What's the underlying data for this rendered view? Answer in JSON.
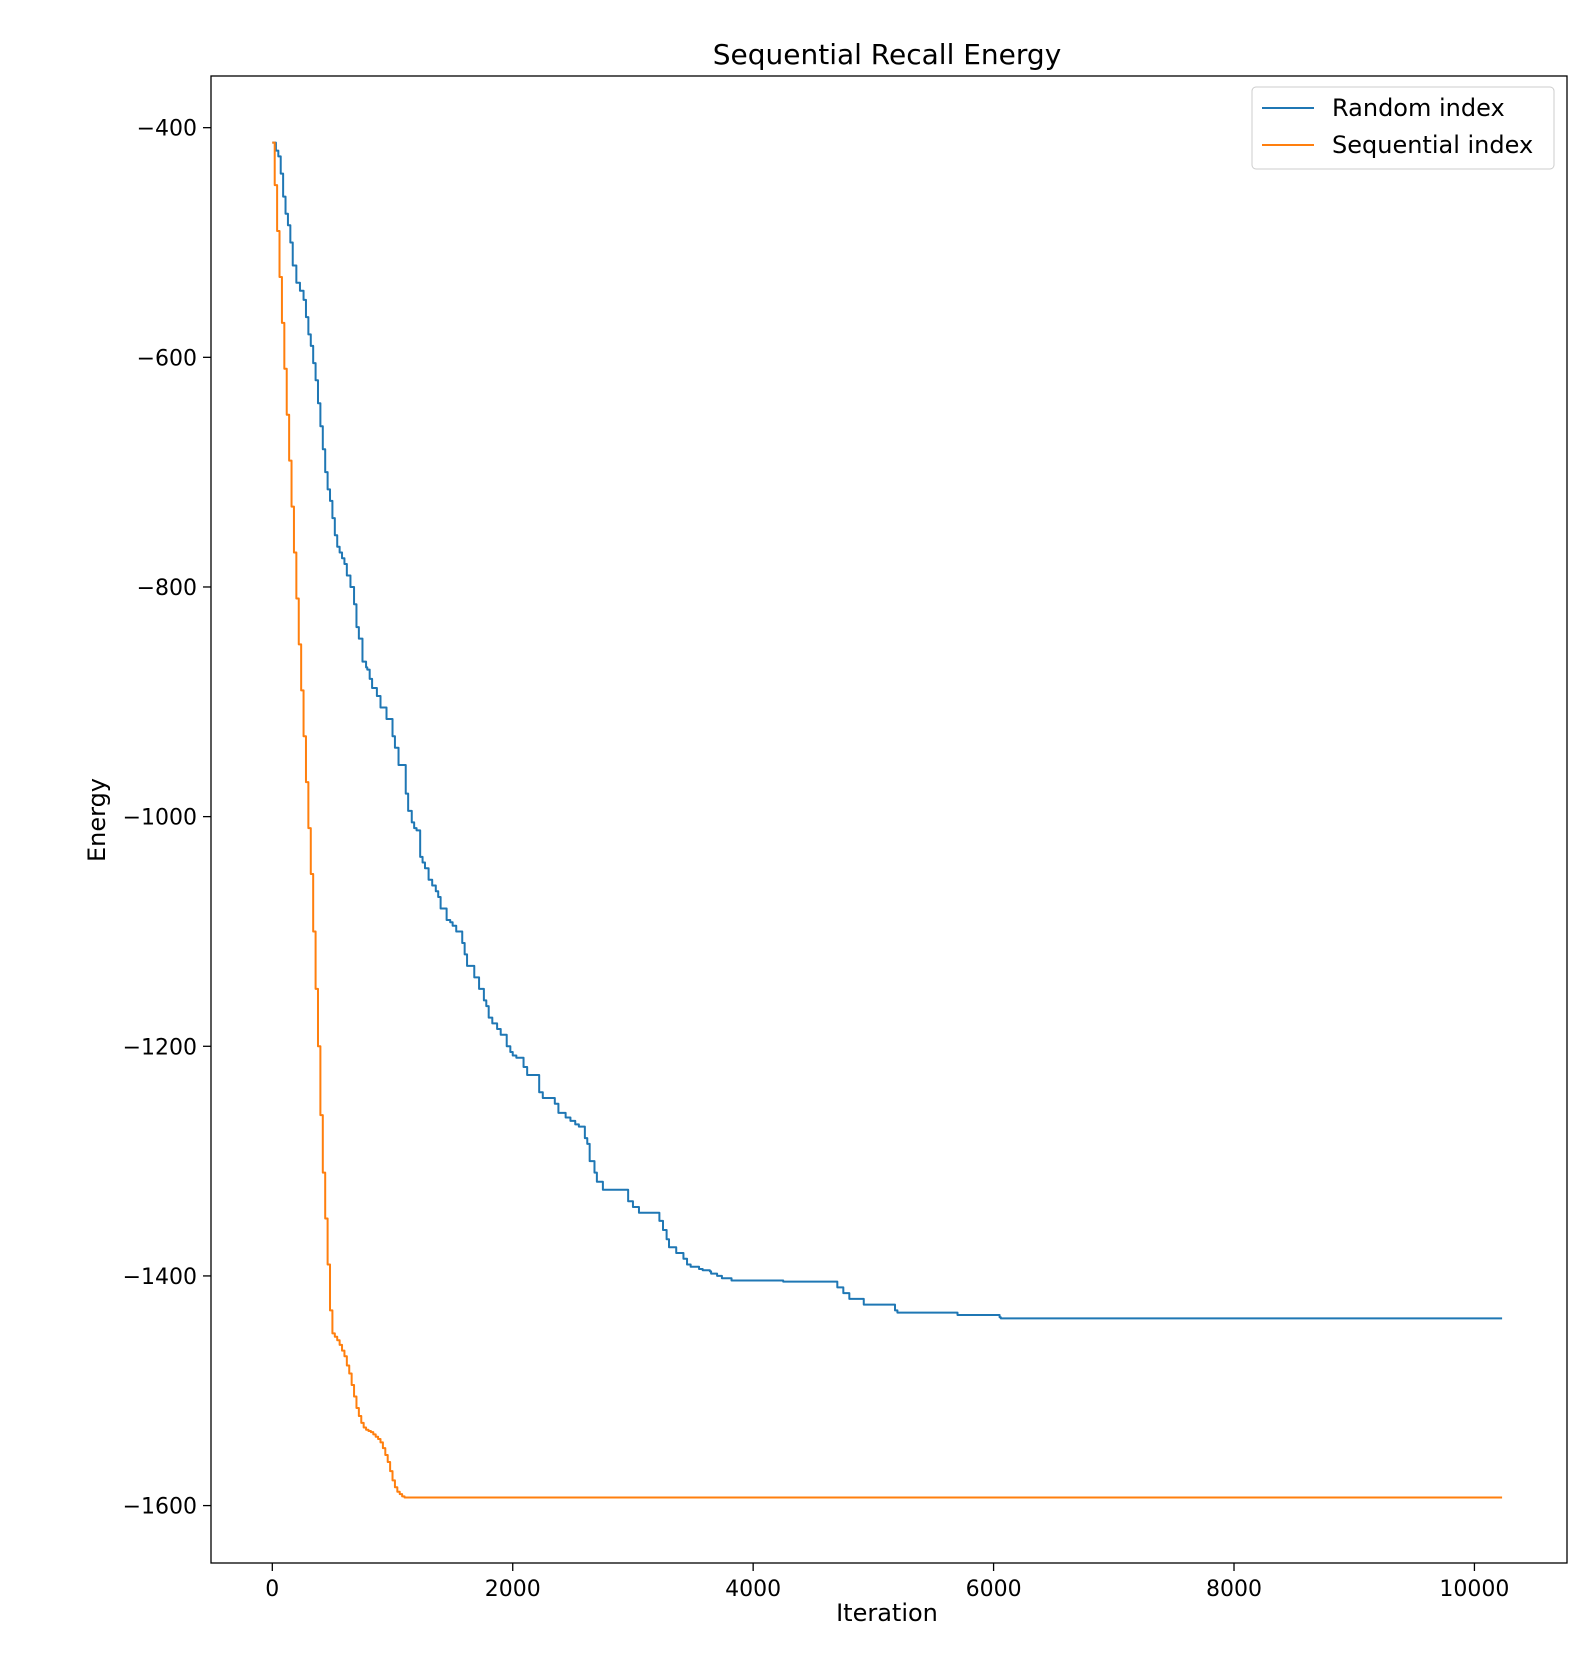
{
  "chart_data": {
    "type": "line",
    "title": "Sequential Recall Energy",
    "xlabel": "Iteration",
    "ylabel": "Energy",
    "xlim": [
      -510,
      10770
    ],
    "ylim": [
      -1650,
      -355
    ],
    "xticks": [
      0,
      2000,
      4000,
      6000,
      8000,
      10000
    ],
    "yticks": [
      -400,
      -600,
      -800,
      -1000,
      -1200,
      -1400,
      -1600
    ],
    "xtick_labels": [
      "0",
      "2000",
      "4000",
      "6000",
      "8000",
      "10000"
    ],
    "ytick_labels": [
      "−400",
      "−600",
      "−800",
      "−1000",
      "−1200",
      "−1400",
      "−1600"
    ],
    "grid": false,
    "legend": "top-right",
    "series": [
      {
        "name": "Random index",
        "color": "#1f77b4",
        "x": [
          0,
          30,
          50,
          70,
          90,
          110,
          130,
          150,
          170,
          200,
          230,
          260,
          280,
          300,
          320,
          340,
          360,
          380,
          400,
          420,
          440,
          460,
          480,
          500,
          520,
          540,
          560,
          580,
          600,
          620,
          650,
          680,
          700,
          720,
          750,
          780,
          790,
          810,
          830,
          870,
          900,
          950,
          1000,
          1020,
          1050,
          1110,
          1130,
          1160,
          1180,
          1200,
          1230,
          1250,
          1270,
          1300,
          1330,
          1360,
          1380,
          1400,
          1450,
          1480,
          1500,
          1530,
          1580,
          1600,
          1620,
          1680,
          1720,
          1760,
          1780,
          1800,
          1830,
          1870,
          1900,
          1950,
          1980,
          2000,
          2030,
          2090,
          2120,
          2220,
          2250,
          2350,
          2380,
          2440,
          2480,
          2520,
          2550,
          2600,
          2620,
          2640,
          2680,
          2700,
          2750,
          2960,
          3000,
          3050,
          3220,
          3250,
          3280,
          3300,
          3360,
          3420,
          3450,
          3480,
          3550,
          3580,
          3640,
          3650,
          3700,
          3740,
          3820,
          4250,
          4700,
          4750,
          4800,
          4920,
          5180,
          5200,
          5700,
          6050,
          6060,
          10230
        ],
        "y": [
          -413,
          -420,
          -425,
          -440,
          -460,
          -475,
          -485,
          -500,
          -520,
          -535,
          -542,
          -550,
          -565,
          -580,
          -590,
          -605,
          -620,
          -640,
          -660,
          -680,
          -700,
          -715,
          -725,
          -740,
          -755,
          -765,
          -770,
          -775,
          -780,
          -790,
          -800,
          -815,
          -835,
          -845,
          -865,
          -870,
          -872,
          -880,
          -888,
          -895,
          -905,
          -915,
          -930,
          -940,
          -955,
          -980,
          -995,
          -1005,
          -1010,
          -1012,
          -1035,
          -1040,
          -1045,
          -1055,
          -1060,
          -1065,
          -1070,
          -1080,
          -1090,
          -1092,
          -1095,
          -1100,
          -1110,
          -1120,
          -1130,
          -1140,
          -1150,
          -1160,
          -1165,
          -1175,
          -1180,
          -1185,
          -1190,
          -1200,
          -1205,
          -1208,
          -1210,
          -1218,
          -1225,
          -1240,
          -1245,
          -1250,
          -1258,
          -1262,
          -1265,
          -1268,
          -1270,
          -1280,
          -1285,
          -1300,
          -1310,
          -1318,
          -1325,
          -1335,
          -1340,
          -1345,
          -1352,
          -1360,
          -1368,
          -1375,
          -1380,
          -1385,
          -1390,
          -1392,
          -1394,
          -1395,
          -1396,
          -1398,
          -1400,
          -1402,
          -1404,
          -1405,
          -1410,
          -1415,
          -1420,
          -1425,
          -1430,
          -1432,
          -1434,
          -1436,
          -1437,
          -1437
        ],
        "step": true
      },
      {
        "name": "Sequential index",
        "color": "#ff7f0e",
        "x": [
          0,
          20,
          40,
          60,
          80,
          100,
          120,
          140,
          160,
          180,
          200,
          220,
          240,
          260,
          280,
          300,
          320,
          340,
          360,
          380,
          400,
          420,
          440,
          460,
          480,
          500,
          520,
          540,
          560,
          580,
          600,
          620,
          640,
          660,
          680,
          700,
          720,
          740,
          760,
          780,
          800,
          820,
          840,
          860,
          880,
          900,
          920,
          940,
          960,
          980,
          1000,
          1020,
          1040,
          1060,
          1080,
          1100,
          1110,
          1150,
          10230
        ],
        "y": [
          -413,
          -450,
          -490,
          -530,
          -570,
          -610,
          -650,
          -690,
          -730,
          -770,
          -810,
          -850,
          -890,
          -930,
          -970,
          -1010,
          -1050,
          -1100,
          -1150,
          -1200,
          -1260,
          -1310,
          -1350,
          -1390,
          -1430,
          -1450,
          -1453,
          -1456,
          -1460,
          -1465,
          -1470,
          -1478,
          -1485,
          -1495,
          -1505,
          -1515,
          -1522,
          -1528,
          -1532,
          -1534,
          -1535,
          -1536,
          -1538,
          -1540,
          -1542,
          -1545,
          -1550,
          -1556,
          -1562,
          -1570,
          -1578,
          -1584,
          -1588,
          -1590,
          -1592,
          -1593,
          -1593,
          -1593,
          -1593
        ],
        "step": true
      }
    ]
  }
}
